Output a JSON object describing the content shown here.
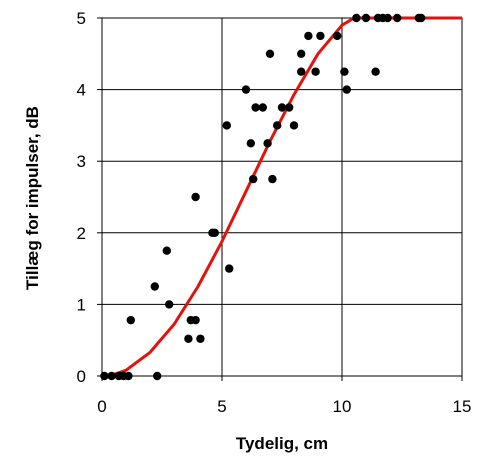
{
  "chart_data": {
    "type": "scatter",
    "title": "",
    "xlabel": "Tydelig, cm",
    "ylabel": "Tillæg for impulser, dB",
    "xlim": [
      0,
      15
    ],
    "ylim": [
      0,
      5
    ],
    "xticks": [
      "0",
      "5",
      "10",
      "15"
    ],
    "yticks": [
      "0",
      "1",
      "2",
      "3",
      "4",
      "5"
    ],
    "grid": true,
    "legend": "none",
    "colors": {
      "points": "#000000",
      "curve": "#e3120b",
      "grid": "#000000"
    },
    "series": [
      {
        "kind": "scatter",
        "points": [
          [
            0.1,
            0
          ],
          [
            0.4,
            0
          ],
          [
            0.7,
            0
          ],
          [
            0.9,
            0
          ],
          [
            1.1,
            0
          ],
          [
            2.3,
            0
          ],
          [
            1.2,
            0.78
          ],
          [
            2.2,
            1.25
          ],
          [
            2.8,
            1.0
          ],
          [
            2.7,
            1.75
          ],
          [
            3.6,
            0.52
          ],
          [
            3.7,
            0.78
          ],
          [
            3.9,
            0.78
          ],
          [
            4.1,
            0.52
          ],
          [
            3.9,
            2.5
          ],
          [
            4.6,
            2.0
          ],
          [
            4.7,
            2.0
          ],
          [
            5.3,
            1.5
          ],
          [
            5.2,
            3.5
          ],
          [
            6.0,
            4.0
          ],
          [
            6.2,
            3.25
          ],
          [
            6.3,
            2.75
          ],
          [
            6.4,
            3.75
          ],
          [
            6.7,
            3.75
          ],
          [
            6.9,
            3.25
          ],
          [
            7.0,
            4.5
          ],
          [
            7.1,
            2.75
          ],
          [
            7.3,
            3.5
          ],
          [
            7.5,
            3.75
          ],
          [
            7.8,
            3.75
          ],
          [
            8.0,
            3.5
          ],
          [
            8.3,
            4.25
          ],
          [
            8.3,
            4.5
          ],
          [
            8.6,
            4.75
          ],
          [
            8.9,
            4.25
          ],
          [
            9.1,
            4.75
          ],
          [
            9.8,
            4.75
          ],
          [
            10.1,
            4.25
          ],
          [
            10.2,
            4.0
          ],
          [
            10.6,
            5.0
          ],
          [
            11.0,
            5.0
          ],
          [
            11.4,
            4.25
          ],
          [
            11.5,
            5.0
          ],
          [
            11.7,
            5.0
          ],
          [
            11.9,
            5.0
          ],
          [
            12.3,
            5.0
          ],
          [
            13.2,
            5.0
          ],
          [
            13.3,
            5.0
          ]
        ]
      },
      {
        "kind": "line",
        "points": [
          [
            0.3,
            0
          ],
          [
            1,
            0.08
          ],
          [
            2,
            0.33
          ],
          [
            3,
            0.72
          ],
          [
            4,
            1.25
          ],
          [
            5,
            1.88
          ],
          [
            6,
            2.58
          ],
          [
            7,
            3.28
          ],
          [
            8,
            3.93
          ],
          [
            9,
            4.5
          ],
          [
            10,
            4.9
          ],
          [
            10.5,
            5.0
          ],
          [
            15,
            5.0
          ]
        ]
      }
    ]
  }
}
